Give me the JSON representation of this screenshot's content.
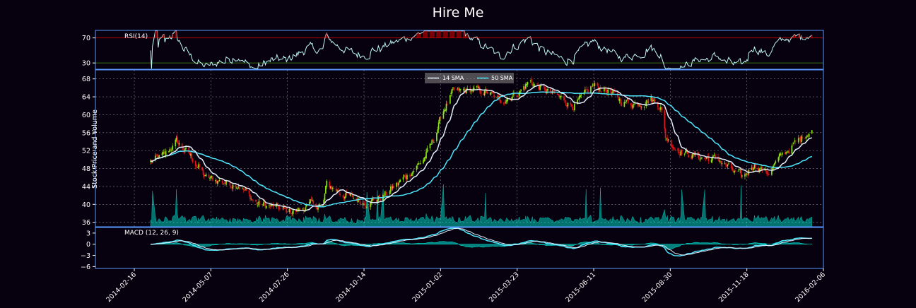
{
  "chart_data": {
    "type": "candlestick",
    "title": "Hire Me",
    "colors": {
      "background": "#07000e",
      "frame": "#5998ff",
      "up": "#9eff15",
      "down": "#ff1717",
      "sma14": "#e1edf9",
      "sma50": "#4ee6fd",
      "volume": "#00ffe8",
      "rsi_line": "#c1f9f7",
      "rsi_over": "#b20000",
      "rsi_under": "#386d13",
      "macd_line": "#4ee6fd",
      "macd_signal": "#e1edf9",
      "macd_fill": "#00ffe8"
    },
    "x_tick_labels": [
      "2014-02-16",
      "2014-05-07",
      "2014-07-26",
      "2014-10-14",
      "2015-01-02",
      "2015-03-23",
      "2015-06-11",
      "2015-08-30",
      "2015-11-18",
      "2016-02-06"
    ],
    "rsi_panel": {
      "label": "RSI(14)",
      "ylim": [
        20,
        82
      ],
      "ticks": [
        30,
        70
      ],
      "tick_labels": [
        "30",
        "70"
      ],
      "overbought": 70,
      "oversold": 30
    },
    "price_panel": {
      "ylabel": "Stock Price and Volume",
      "ylim": [
        35,
        70
      ],
      "ticks": [
        36,
        40,
        44,
        48,
        52,
        56,
        60,
        64,
        68
      ],
      "tick_labels": [
        "36",
        "40",
        "44",
        "48",
        "52",
        "56",
        "60",
        "64",
        "68"
      ],
      "legend": [
        "14 SMA",
        "50 SMA"
      ],
      "legend_position": "top-center",
      "grid": true,
      "close_keypoints": [
        [
          "2014-03-05",
          49.5
        ],
        [
          "2014-03-20",
          51
        ],
        [
          "2014-04-01",
          54
        ],
        [
          "2014-04-15",
          51
        ],
        [
          "2014-04-25",
          48
        ],
        [
          "2014-05-01",
          46
        ],
        [
          "2014-05-20",
          45
        ],
        [
          "2014-06-05",
          44.5
        ],
        [
          "2014-06-15",
          42
        ],
        [
          "2014-06-25",
          40
        ],
        [
          "2014-07-10",
          39.5
        ],
        [
          "2014-07-25",
          38.5
        ],
        [
          "2014-08-05",
          38.5
        ],
        [
          "2014-08-20",
          40
        ],
        [
          "2014-09-01",
          39.5
        ],
        [
          "2014-09-05",
          44.5
        ],
        [
          "2014-09-20",
          42.5
        ],
        [
          "2014-10-01",
          41.5
        ],
        [
          "2014-10-15",
          40.5
        ],
        [
          "2014-11-01",
          41.5
        ],
        [
          "2014-11-15",
          44
        ],
        [
          "2014-12-01",
          47
        ],
        [
          "2014-12-15",
          50
        ],
        [
          "2014-12-25",
          54
        ],
        [
          "2015-01-05",
          61
        ],
        [
          "2015-01-15",
          65
        ],
        [
          "2015-02-05",
          65.5
        ],
        [
          "2015-02-20",
          65
        ],
        [
          "2015-03-05",
          63
        ],
        [
          "2015-03-25",
          65
        ],
        [
          "2015-04-05",
          67.5
        ],
        [
          "2015-04-20",
          65.5
        ],
        [
          "2015-05-05",
          64
        ],
        [
          "2015-05-20",
          62
        ],
        [
          "2015-06-01",
          64
        ],
        [
          "2015-06-10",
          66.5
        ],
        [
          "2015-06-25",
          65.5
        ],
        [
          "2015-07-10",
          63
        ],
        [
          "2015-07-25",
          62.5
        ],
        [
          "2015-08-10",
          63.5
        ],
        [
          "2015-08-20",
          62
        ],
        [
          "2015-08-25",
          55
        ],
        [
          "2015-09-05",
          52.5
        ],
        [
          "2015-09-20",
          51
        ],
        [
          "2015-10-01",
          50.5
        ],
        [
          "2015-10-20",
          50
        ],
        [
          "2015-11-05",
          47
        ],
        [
          "2015-11-15",
          46
        ],
        [
          "2015-11-25",
          49
        ],
        [
          "2015-12-10",
          47
        ],
        [
          "2015-12-25",
          51
        ],
        [
          "2016-01-10",
          54
        ],
        [
          "2016-01-25",
          57
        ]
      ]
    },
    "macd_panel": {
      "label": "MACD (12, 26, 9)",
      "ylim": [
        -6.5,
        4.5
      ],
      "ticks": [
        -6,
        -3,
        0,
        3
      ],
      "tick_labels": [
        "−6",
        "−3",
        "0",
        "3"
      ]
    }
  }
}
